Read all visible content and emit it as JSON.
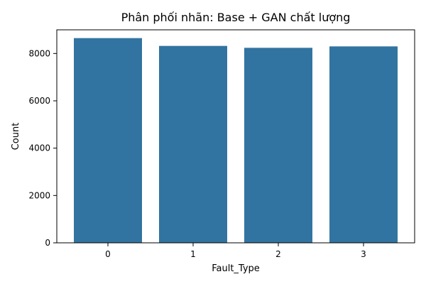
{
  "chart_data": {
    "type": "bar",
    "title": "Phân phối nhãn: Base + GAN chất lượng",
    "xlabel": "Fault_Type",
    "ylabel": "Count",
    "categories": [
      "0",
      "1",
      "2",
      "3"
    ],
    "values": [
      8650,
      8320,
      8240,
      8300
    ],
    "ylim": [
      0,
      9000
    ],
    "yticks": [
      0,
      2000,
      4000,
      6000,
      8000
    ],
    "grid": false,
    "bar_color": "#3274a1"
  }
}
